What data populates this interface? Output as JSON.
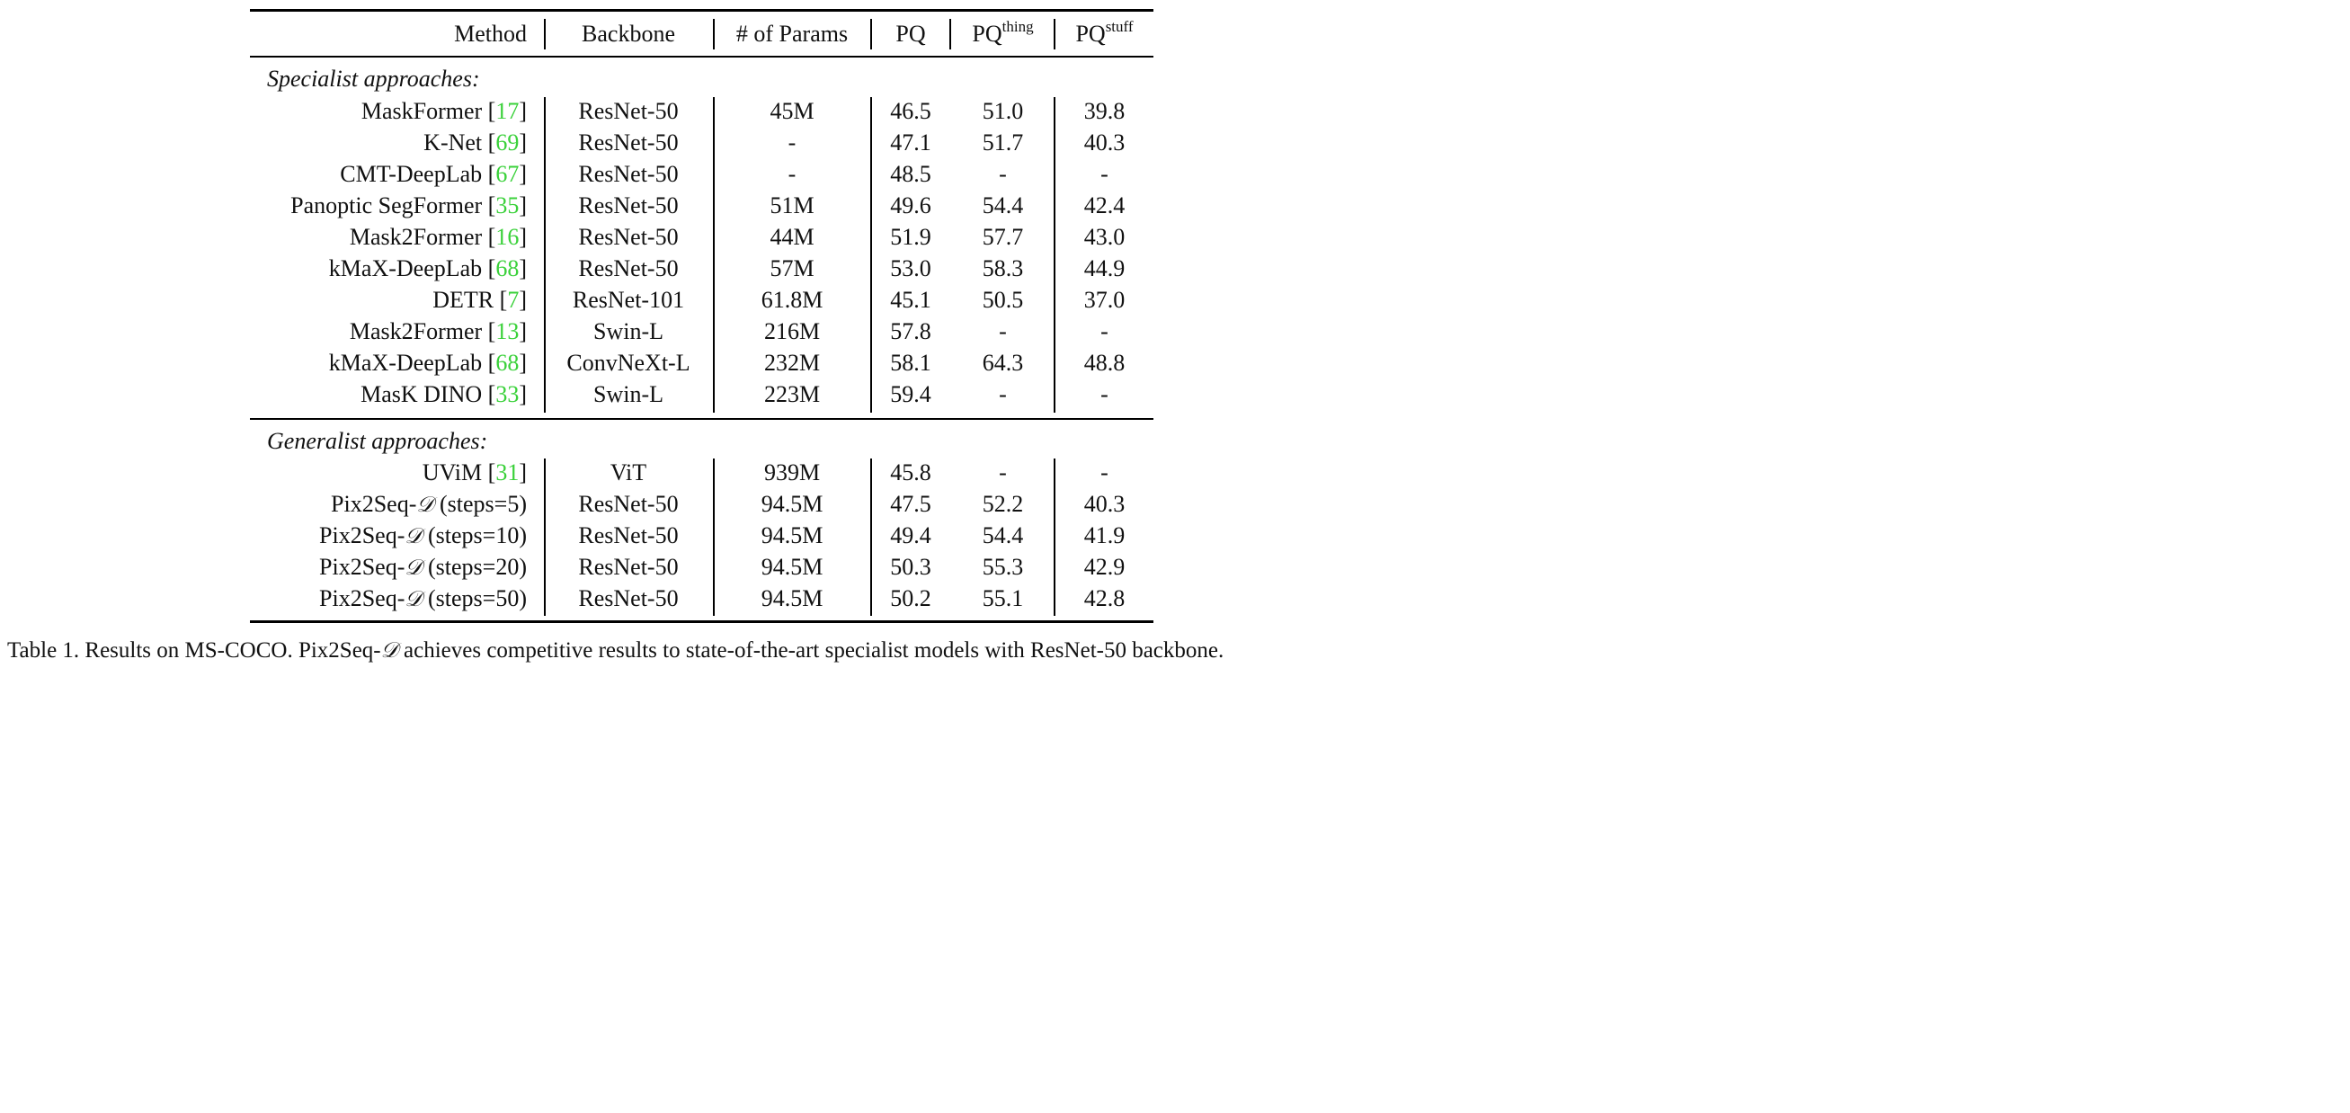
{
  "table": {
    "headers": {
      "method": "Method",
      "backbone": "Backbone",
      "params": "# of Params",
      "pq": "PQ",
      "pq_thing_base": "PQ",
      "pq_thing_sup": "thing",
      "pq_stuff_base": "PQ",
      "pq_stuff_sup": "stuff"
    },
    "specialist": {
      "label": "Specialist approaches:",
      "rows": [
        {
          "method": "MaskFormer",
          "cite": "17",
          "backbone": "ResNet-50",
          "params": "45M",
          "pq": "46.5",
          "pq_thing": "51.0",
          "pq_stuff": "39.8"
        },
        {
          "method": "K-Net",
          "cite": "69",
          "backbone": "ResNet-50",
          "params": "-",
          "pq": "47.1",
          "pq_thing": "51.7",
          "pq_stuff": "40.3"
        },
        {
          "method": "CMT-DeepLab",
          "cite": "67",
          "backbone": "ResNet-50",
          "params": "-",
          "pq": "48.5",
          "pq_thing": "-",
          "pq_stuff": "-"
        },
        {
          "method": "Panoptic SegFormer",
          "cite": "35",
          "backbone": "ResNet-50",
          "params": "51M",
          "pq": "49.6",
          "pq_thing": "54.4",
          "pq_stuff": "42.4"
        },
        {
          "method": "Mask2Former",
          "cite": "16",
          "backbone": "ResNet-50",
          "params": "44M",
          "pq": "51.9",
          "pq_thing": "57.7",
          "pq_stuff": "43.0"
        },
        {
          "method": "kMaX-DeepLab",
          "cite": "68",
          "backbone": "ResNet-50",
          "params": "57M",
          "pq": "53.0",
          "pq_thing": "58.3",
          "pq_stuff": "44.9"
        },
        {
          "method": "DETR",
          "cite": "7",
          "backbone": "ResNet-101",
          "params": "61.8M",
          "pq": "45.1",
          "pq_thing": "50.5",
          "pq_stuff": "37.0"
        },
        {
          "method": "Mask2Former",
          "cite": "13",
          "backbone": "Swin-L",
          "params": "216M",
          "pq": "57.8",
          "pq_thing": "-",
          "pq_stuff": "-"
        },
        {
          "method": "kMaX-DeepLab",
          "cite": "68",
          "backbone": "ConvNeXt-L",
          "params": "232M",
          "pq": "58.1",
          "pq_thing": "64.3",
          "pq_stuff": "48.8"
        },
        {
          "method": "MasK DINO",
          "cite": "33",
          "backbone": "Swin-L",
          "params": "223M",
          "pq": "59.4",
          "pq_thing": "-",
          "pq_stuff": "-"
        }
      ]
    },
    "generalist": {
      "label": "Generalist approaches:",
      "rows": [
        {
          "method": "UViM",
          "cite": "31",
          "backbone": "ViT",
          "params": "939M",
          "pq": "45.8",
          "pq_thing": "-",
          "pq_stuff": "-"
        },
        {
          "method_prefix": "Pix2Seq-",
          "method_script": "𝒟",
          "method_suffix": " (steps=5)",
          "backbone": "ResNet-50",
          "params": "94.5M",
          "pq": "47.5",
          "pq_thing": "52.2",
          "pq_stuff": "40.3"
        },
        {
          "method_prefix": "Pix2Seq-",
          "method_script": "𝒟",
          "method_suffix": " (steps=10)",
          "backbone": "ResNet-50",
          "params": "94.5M",
          "pq": "49.4",
          "pq_thing": "54.4",
          "pq_stuff": "41.9"
        },
        {
          "method_prefix": "Pix2Seq-",
          "method_script": "𝒟",
          "method_suffix": " (steps=20)",
          "backbone": "ResNet-50",
          "params": "94.5M",
          "pq": "50.3",
          "pq_thing": "55.3",
          "pq_stuff": "42.9"
        },
        {
          "method_prefix": "Pix2Seq-",
          "method_script": "𝒟",
          "method_suffix": " (steps=50)",
          "backbone": "ResNet-50",
          "params": "94.5M",
          "pq": "50.2",
          "pq_thing": "55.1",
          "pq_stuff": "42.8"
        }
      ]
    }
  },
  "caption": {
    "before": "Table 1. Results on MS-COCO. Pix2Seq-",
    "script": "𝒟",
    "after": " achieves competitive results to state-of-the-art specialist models with ResNet-50 backbone."
  },
  "colors": {
    "citation": "#3ad13a",
    "text": "#111111",
    "rules": "#000000"
  }
}
